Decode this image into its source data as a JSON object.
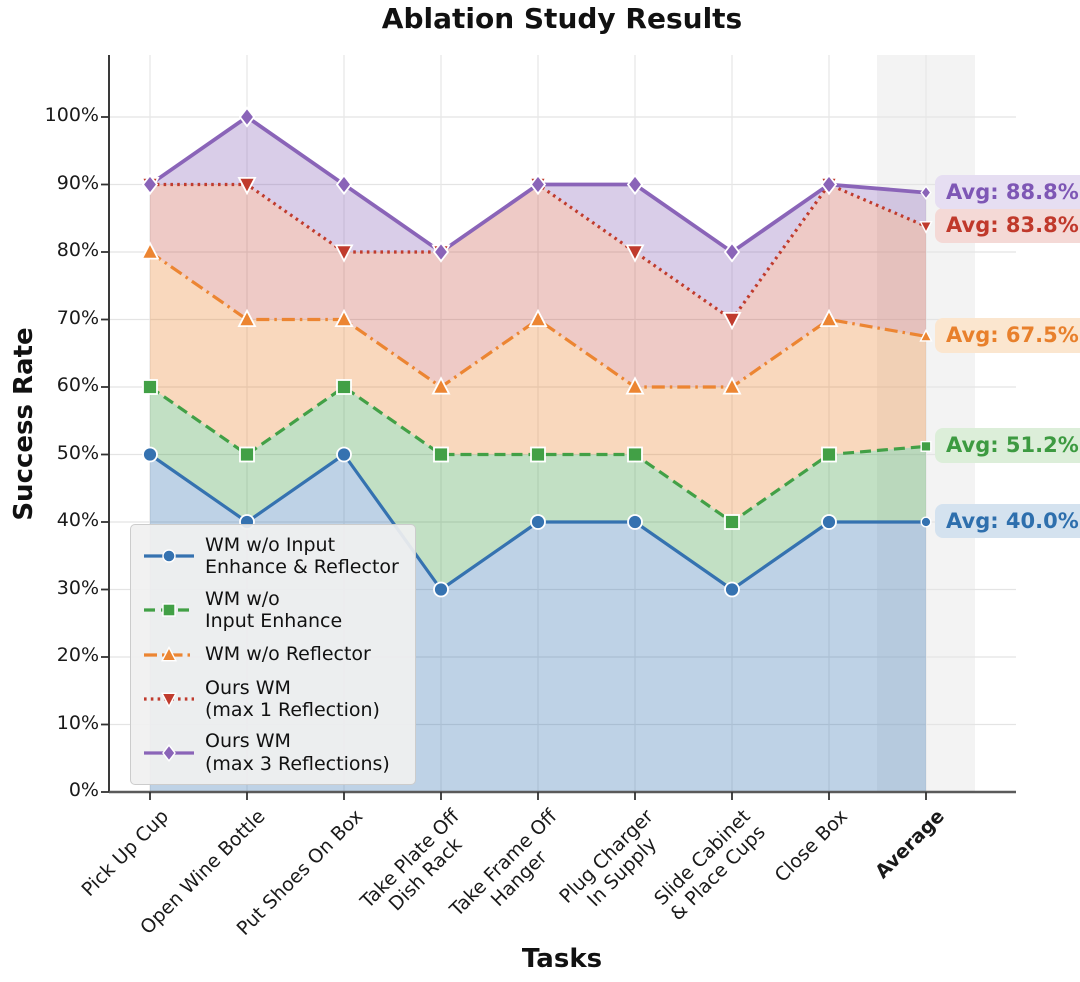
{
  "title": "Ablation Study Results",
  "axes": {
    "x_label": "Tasks",
    "y_label": "Success Rate"
  },
  "chart_data": {
    "type": "line",
    "title": "Ablation Study Results",
    "xlabel": "Tasks",
    "ylabel": "Success Rate",
    "categories": [
      "Pick Up Cup",
      "Open Wine Bottle",
      "Put Shoes On Box",
      "Take Plate Off\nDish Rack",
      "Take Frame Off\nHanger",
      "Plug Charger\nIn Supply",
      "Slide Cabinet\n& Place Cups",
      "Close Box",
      "Average"
    ],
    "emphasized_category_index": 8,
    "y_ticks": [
      "0%",
      "10%",
      "20%",
      "30%",
      "40%",
      "50%",
      "60%",
      "70%",
      "80%",
      "90%",
      "100%"
    ],
    "ylim": [
      0,
      110
    ],
    "grid": true,
    "legend_position": "lower left",
    "highlight": {
      "category_index": 8,
      "color": "#ececec",
      "label": "Average"
    },
    "series": [
      {
        "name": "WM w/o Input Enhance & Reflector",
        "legend_label": "WM w/o Input\nEnhance & Reflector",
        "color": "#3572b0",
        "marker": "circle",
        "dash": "solid",
        "values": [
          50,
          40,
          50,
          30,
          40,
          40,
          30,
          40
        ],
        "average": 40.0,
        "avg_label": "Avg: 40.0%",
        "annotation_color": "#2e6fad",
        "annotation_bg": "#d4e2ef"
      },
      {
        "name": "WM w/o Input Enhance",
        "legend_label": "WM w/o\nInput Enhance",
        "color": "#42a046",
        "marker": "square",
        "dash": "dashed",
        "values": [
          60,
          50,
          60,
          50,
          50,
          50,
          40,
          50
        ],
        "average": 51.2,
        "avg_label": "Avg: 51.2%",
        "annotation_color": "#3d9a41",
        "annotation_bg": "#dceed9"
      },
      {
        "name": "WM w/o Reflector",
        "legend_label": "WM w/o Reflector",
        "color": "#ec8532",
        "marker": "triangle-up",
        "dash": "dashdot",
        "values": [
          80,
          70,
          70,
          60,
          70,
          60,
          60,
          70
        ],
        "average": 67.5,
        "avg_label": "Avg: 67.5%",
        "annotation_color": "#e8802c",
        "annotation_bg": "#fbe6cf"
      },
      {
        "name": "Ours WM (max 1 Reflection)",
        "legend_label": "Ours WM\n(max 1 Reflection)",
        "color": "#c03b2d",
        "marker": "triangle-down",
        "dash": "dotted",
        "values": [
          90,
          90,
          80,
          80,
          90,
          80,
          70,
          90
        ],
        "average": 83.8,
        "avg_label": "Avg: 83.8%",
        "annotation_color": "#c0392b",
        "annotation_bg": "#f4d9d6"
      },
      {
        "name": "Ours WM (max 3 Reflections)",
        "legend_label": "Ours WM\n(max 3 Reflections)",
        "color": "#8a64b8",
        "marker": "diamond",
        "dash": "solid",
        "values": [
          90,
          100,
          90,
          80,
          90,
          90,
          80,
          90
        ],
        "average": 88.8,
        "avg_label": "Avg: 88.8%",
        "annotation_color": "#7e57b5",
        "annotation_bg": "#e6def2"
      }
    ]
  }
}
